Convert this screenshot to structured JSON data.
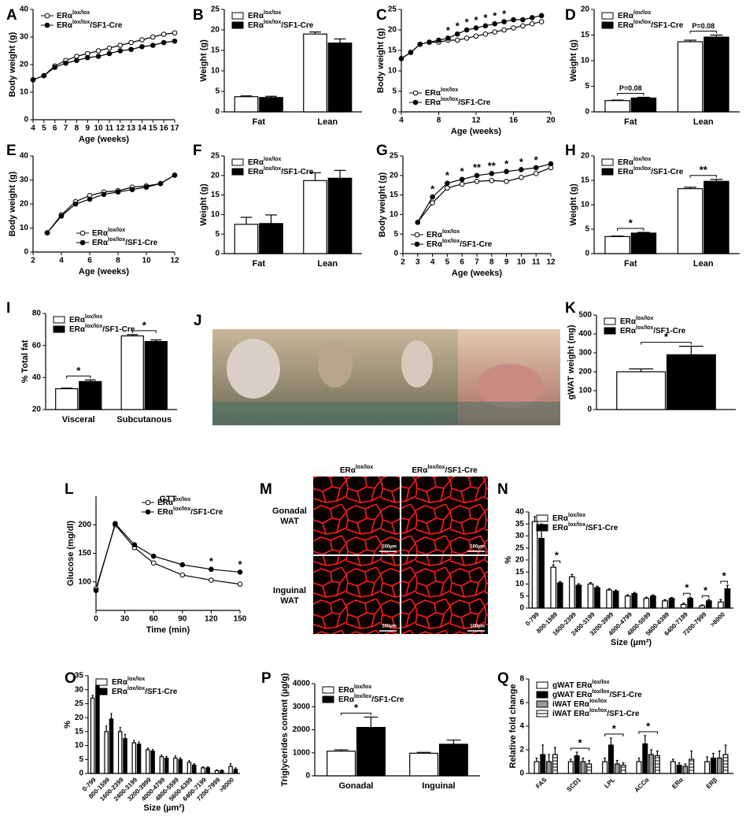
{
  "chart_data": [
    {
      "panel": "A",
      "type": "line",
      "x_label": "Age (weeks)",
      "y_label": "Body weight (g)",
      "x": [
        4,
        5,
        6,
        7,
        8,
        9,
        10,
        11,
        12,
        13,
        14,
        15,
        16,
        17
      ],
      "xlim": [
        4,
        17
      ],
      "xticks": [
        4,
        5,
        6,
        7,
        8,
        9,
        10,
        11,
        12,
        13,
        14,
        15,
        16,
        17
      ],
      "ylim": [
        0,
        40
      ],
      "yticks": [
        0,
        10,
        20,
        30,
        40
      ],
      "legend": "top-left",
      "series": [
        {
          "name": "ERαlox/lox",
          "color": "#000000",
          "fill": "#ffffff",
          "values": [
            14.5,
            16,
            19.5,
            21.5,
            23,
            24,
            25,
            26,
            27,
            28,
            29,
            30,
            31,
            31.5
          ]
        },
        {
          "name": "ERαlox/lox/SF1-Cre",
          "color": "#000000",
          "fill": "#000000",
          "values": [
            14.5,
            16,
            19,
            20.5,
            21.5,
            22.5,
            23,
            24,
            25,
            25.5,
            26.5,
            27,
            28,
            28.5
          ]
        }
      ]
    },
    {
      "panel": "B",
      "type": "bar",
      "y_label": "Weight (g)",
      "categories": [
        "Fat",
        "Lean"
      ],
      "ylim": [
        0,
        25
      ],
      "yticks": [
        0,
        5,
        10,
        15,
        20,
        25
      ],
      "legend": "top-left",
      "series": [
        {
          "name": "ERαlox/lox",
          "color": "#ffffff",
          "values": [
            3.7,
            19
          ],
          "errors": [
            0.2,
            0.5
          ]
        },
        {
          "name": "ERαlox/lox/SF1-Cre",
          "color": "#000000",
          "values": [
            3.5,
            16.8
          ],
          "errors": [
            0.3,
            1
          ]
        }
      ]
    },
    {
      "panel": "C",
      "type": "line",
      "x_label": "Age (weeks)",
      "y_label": "Body weight (g)",
      "x": [
        4,
        5,
        6,
        7,
        8,
        9,
        10,
        11,
        12,
        13,
        14,
        15,
        16,
        17,
        18,
        19
      ],
      "xlim": [
        4,
        20
      ],
      "xticks": [
        4,
        8,
        12,
        16,
        20
      ],
      "ylim": [
        0,
        25
      ],
      "yticks": [
        0,
        5,
        10,
        15,
        20,
        25
      ],
      "legend": "bottom-left",
      "significance": [
        null,
        null,
        null,
        null,
        null,
        "*",
        "*",
        "*",
        "*",
        "*",
        "*",
        "*",
        null,
        null,
        null,
        null
      ],
      "series": [
        {
          "name": "ERαlox/lox",
          "color": "#000000",
          "fill": "#ffffff",
          "values": [
            13,
            14.5,
            16.5,
            17,
            17,
            17.5,
            17.5,
            18,
            18.5,
            19,
            19.5,
            20,
            20.5,
            21,
            21.5,
            22
          ]
        },
        {
          "name": "ERαlox/lox/SF1-Cre",
          "color": "#000000",
          "fill": "#000000",
          "values": [
            13,
            14.5,
            16.5,
            17,
            17.5,
            18,
            19,
            20,
            20.5,
            21,
            21.5,
            22,
            22.5,
            22.5,
            23,
            23.5
          ]
        }
      ]
    },
    {
      "panel": "D",
      "type": "bar",
      "y_label": "Weight (g)",
      "categories": [
        "Fat",
        "Lean"
      ],
      "ylim": [
        0,
        20
      ],
      "yticks": [
        0,
        5,
        10,
        15,
        20
      ],
      "legend": "top-left",
      "significance": [
        "P=0.08",
        "P=0.08"
      ],
      "series": [
        {
          "name": "ERαlox/lox",
          "color": "#ffffff",
          "values": [
            2.2,
            13.7
          ],
          "errors": [
            0.1,
            0.3
          ]
        },
        {
          "name": "ERαlox/lox/SF1-Cre",
          "color": "#000000",
          "values": [
            2.7,
            14.6
          ],
          "errors": [
            0.15,
            0.4
          ]
        }
      ]
    },
    {
      "panel": "E",
      "type": "line",
      "x_label": "Age (weeks)",
      "y_label": "Body weight (g)",
      "x": [
        3,
        4,
        5,
        6,
        7,
        8,
        9,
        10,
        11,
        12
      ],
      "xlim": [
        2,
        12
      ],
      "xticks": [
        2,
        4,
        6,
        8,
        10,
        12
      ],
      "ylim": [
        0,
        40
      ],
      "yticks": [
        0,
        10,
        20,
        30,
        40
      ],
      "legend": "bottom-right",
      "series": [
        {
          "name": "ERαlox/lox",
          "color": "#000000",
          "fill": "#ffffff",
          "values": [
            8,
            15.5,
            21,
            23.5,
            25,
            25.5,
            27,
            27.5,
            28.5,
            32
          ]
        },
        {
          "name": "ERαlox/lox/SF1-Cre",
          "color": "#000000",
          "fill": "#000000",
          "values": [
            8,
            15,
            20,
            22,
            24,
            25,
            26,
            27,
            28.5,
            32
          ]
        }
      ]
    },
    {
      "panel": "F",
      "type": "bar",
      "y_label": "Weight (g)",
      "categories": [
        "Fat",
        "Lean"
      ],
      "ylim": [
        0,
        25
      ],
      "yticks": [
        0,
        5,
        10,
        15,
        20,
        25
      ],
      "legend": "top-left",
      "series": [
        {
          "name": "ERαlox/lox",
          "color": "#ffffff",
          "values": [
            7.5,
            18.7
          ],
          "errors": [
            1.8,
            2
          ]
        },
        {
          "name": "ERαlox/lox/SF1-Cre",
          "color": "#000000",
          "values": [
            7.7,
            19.3
          ],
          "errors": [
            2.2,
            2
          ]
        }
      ]
    },
    {
      "panel": "G",
      "type": "line",
      "x_label": "Age (weeks)",
      "y_label": "Body weight (g)",
      "x": [
        3,
        4,
        5,
        6,
        7,
        8,
        9,
        10,
        11,
        12
      ],
      "xlim": [
        2,
        12
      ],
      "xticks": [
        2,
        3,
        4,
        5,
        6,
        7,
        8,
        9,
        10,
        11,
        12
      ],
      "ylim": [
        0,
        25
      ],
      "yticks": [
        0,
        5,
        10,
        15,
        20,
        25
      ],
      "legend": "bottom-left",
      "significance": [
        null,
        "*",
        "*",
        "*",
        "**",
        "**",
        "*",
        "*",
        "*",
        null
      ],
      "series": [
        {
          "name": "ERαlox/lox",
          "color": "#000000",
          "fill": "#ffffff",
          "values": [
            8,
            13,
            16.8,
            17.8,
            18.5,
            18.7,
            18.5,
            19.5,
            20.5,
            22
          ]
        },
        {
          "name": "ERαlox/lox/SF1-Cre",
          "color": "#000000",
          "fill": "#000000",
          "values": [
            8,
            14.5,
            18,
            19,
            20,
            20.5,
            21,
            21.5,
            22,
            23
          ]
        }
      ]
    },
    {
      "panel": "H",
      "type": "bar",
      "y_label": "Weight (g)",
      "categories": [
        "Fat",
        "Lean"
      ],
      "ylim": [
        0,
        20
      ],
      "yticks": [
        0,
        5,
        10,
        15,
        20
      ],
      "legend": "top-left",
      "significance": [
        "*",
        "**"
      ],
      "series": [
        {
          "name": "ERαlox/lox",
          "color": "#ffffff",
          "values": [
            3.5,
            13.3
          ],
          "errors": [
            0.1,
            0.3
          ]
        },
        {
          "name": "ERαlox/lox/SF1-Cre",
          "color": "#000000",
          "values": [
            4.2,
            14.8
          ],
          "errors": [
            0.15,
            0.4
          ]
        }
      ]
    },
    {
      "panel": "I",
      "type": "bar",
      "y_label": "% Total fat",
      "categories": [
        "Visceral",
        "Subcutanous"
      ],
      "ylim": [
        20,
        80
      ],
      "yticks": [
        20,
        40,
        60,
        80
      ],
      "legend": "top-left",
      "significance": [
        "*",
        "*"
      ],
      "series": [
        {
          "name": "ERαlox/lox",
          "color": "#ffffff",
          "values": [
            33,
            66
          ],
          "errors": [
            0.4,
            0.8
          ]
        },
        {
          "name": "ERαlox/lox/SF1-Cre",
          "color": "#000000",
          "values": [
            37.5,
            62.5
          ],
          "errors": [
            1,
            1
          ]
        }
      ]
    },
    {
      "panel": "K",
      "type": "bar",
      "y_label": "gWAT weight (mg)",
      "categories": [
        null
      ],
      "ylim": [
        0,
        500
      ],
      "yticks": [
        0,
        100,
        200,
        300,
        400,
        500
      ],
      "legend": "top-left",
      "significance": [
        "*"
      ],
      "series": [
        {
          "name": "ERαlox/lox",
          "color": "#ffffff",
          "values": [
            200
          ],
          "errors": [
            15
          ]
        },
        {
          "name": "ERαlox/lox/SF1-Cre",
          "color": "#000000",
          "values": [
            290
          ],
          "errors": [
            45
          ]
        }
      ]
    },
    {
      "panel": "L",
      "type": "line",
      "title": "GTT",
      "x_label": "Time (min)",
      "y_label": "Glucose (mg/dl)",
      "x": [
        0,
        20,
        40,
        60,
        90,
        120,
        150
      ],
      "xlim": [
        0,
        150
      ],
      "xticks": [
        0,
        30,
        60,
        90,
        120,
        150
      ],
      "ylim": [
        50,
        250
      ],
      "yticks": [
        100,
        150,
        200
      ],
      "legend": "top-right",
      "significance": [
        null,
        null,
        null,
        null,
        null,
        "*",
        "*"
      ],
      "series": [
        {
          "name": "ERαlox/lox",
          "color": "#000000",
          "fill": "#ffffff",
          "values": [
            88,
            200,
            160,
            133,
            112,
            103,
            96
          ]
        },
        {
          "name": "ERαlox/lox/SF1-Cre",
          "color": "#000000",
          "fill": "#000000",
          "values": [
            85,
            202,
            165,
            145,
            130,
            122,
            117
          ]
        }
      ]
    },
    {
      "panel": "N",
      "type": "bar",
      "x_label": "Size (µm²)",
      "y_label": "%",
      "xtick_rotation": -45,
      "categories": [
        "0-799",
        "800-1599",
        "1600-2399",
        "2400-3199",
        "3200-3999",
        "4000-4799",
        "4800-5599",
        "5600-6399",
        "6400-7199",
        "7200-7999",
        ">8000"
      ],
      "ylim": [
        0,
        40
      ],
      "yticks": [
        0,
        5,
        10,
        15,
        20,
        25,
        30,
        35,
        40
      ],
      "legend": "top-left",
      "significance": [
        null,
        "*",
        null,
        null,
        null,
        null,
        null,
        null,
        "*",
        "*",
        "*"
      ],
      "series": [
        {
          "name": "ERαlox/lox",
          "color": "#ffffff",
          "values": [
            36,
            17,
            13,
            10,
            7.5,
            5,
            4,
            3,
            1.5,
            1,
            2.5
          ],
          "errors": [
            2,
            1,
            1,
            0.6,
            0.5,
            0.5,
            0.5,
            0.5,
            0.5,
            0.3,
            1
          ]
        },
        {
          "name": "ERαlox/lox/SF1-Cre",
          "color": "#000000",
          "values": [
            29,
            10.5,
            9.5,
            8.5,
            7,
            6,
            5,
            4,
            4,
            3,
            8
          ],
          "errors": [
            6,
            0.5,
            0.6,
            0.6,
            0.5,
            0.5,
            0.5,
            0.4,
            0.5,
            0.5,
            1.5
          ]
        }
      ]
    },
    {
      "panel": "O",
      "type": "bar",
      "x_label": "Size (µm²)",
      "y_label": "%",
      "xtick_rotation": -45,
      "categories": [
        "0-799",
        "800-1599",
        "1600-2399",
        "2400-3199",
        "3200-3999",
        "4000-4799",
        "4800-5599",
        "5600-6399",
        "6400-7199",
        "7200-7999",
        ">8000"
      ],
      "ylim": [
        0,
        35
      ],
      "yticks": [
        0,
        5,
        10,
        15,
        20,
        25,
        30,
        35
      ],
      "legend": "top-left",
      "series": [
        {
          "name": "ERαlox/lox",
          "color": "#ffffff",
          "values": [
            27,
            15,
            15,
            11,
            8.5,
            6,
            5.5,
            4,
            2,
            1,
            2.5
          ],
          "errors": [
            1,
            2,
            1.5,
            0.8,
            0.6,
            0.6,
            0.8,
            0.6,
            0.4,
            0.3,
            1
          ]
        },
        {
          "name": "ERαlox/lox/SF1-Cre",
          "color": "#000000",
          "values": [
            31.5,
            19.5,
            12.5,
            10.5,
            8,
            5.5,
            5,
            3,
            2,
            1,
            1.5
          ],
          "errors": [
            2,
            2,
            1.5,
            0.8,
            0.6,
            0.6,
            0.6,
            0.5,
            0.4,
            0.3,
            0.5
          ]
        }
      ]
    },
    {
      "panel": "P",
      "type": "bar",
      "y_label": "Triglycerides content (µg/g)",
      "categories": [
        "Gonadal",
        "Inguinal"
      ],
      "ylim": [
        0,
        4000
      ],
      "yticks": [
        0,
        1000,
        2000,
        3000,
        4000
      ],
      "legend": "top-left",
      "significance": [
        "*",
        null
      ],
      "series": [
        {
          "name": "ERαlox/lox",
          "color": "#ffffff",
          "values": [
            1070,
            980
          ],
          "errors": [
            60,
            40
          ]
        },
        {
          "name": "ERαlox/lox/SF1-Cre",
          "color": "#000000",
          "values": [
            2100,
            1370
          ],
          "errors": [
            450,
            180
          ]
        }
      ]
    },
    {
      "panel": "Q",
      "type": "bar",
      "y_label": "Relative fold change",
      "xtick_rotation": -45,
      "categories": [
        "FAS",
        "SCD1",
        "LPL",
        "ACCα",
        "ERα",
        "ERβ"
      ],
      "ylim": [
        0,
        8
      ],
      "yticks": [
        0,
        2,
        4,
        6,
        8
      ],
      "legend": "top-left",
      "significance": [
        null,
        "*",
        "*",
        "*",
        null,
        null
      ],
      "series": [
        {
          "name": "gWAT ERαlox/lox",
          "color": "#ffffff",
          "values": [
            1,
            1,
            1,
            1,
            1,
            1
          ],
          "errors": [
            0.3,
            0.2,
            0.3,
            0.3,
            0.2,
            0.4
          ]
        },
        {
          "name": "gWAT ERαlox/lox/SF1-Cre",
          "color": "#000000",
          "values": [
            1.6,
            1.5,
            2.4,
            2.5,
            0.7,
            1.3
          ],
          "errors": [
            0.8,
            0.3,
            0.6,
            0.7,
            0.2,
            0.4
          ]
        },
        {
          "name": "iWAT ERαlox/lox",
          "color": "#999999",
          "values": [
            1,
            1,
            0.8,
            1.6,
            0.6,
            1.3
          ],
          "errors": [
            0.6,
            0.3,
            0.3,
            0.4,
            0.2,
            0.6
          ]
        },
        {
          "name": "iWAT ERαlox/lox/SF1-Cre",
          "color": "#dddddd",
          "pattern": "hatch",
          "values": [
            1.6,
            0.8,
            0.7,
            1.5,
            1.2,
            1.6
          ],
          "errors": [
            0.6,
            0.3,
            0.2,
            0.4,
            0.7,
            0.8
          ]
        }
      ]
    }
  ],
  "image_panels": [
    {
      "panel": "J"
    },
    {
      "panel": "M",
      "column_labels": [
        "ERαlox/lox",
        "ERαlox/lox/SF1-Cre"
      ],
      "row_labels": [
        "Gonadal WAT",
        "Inguinal WAT"
      ],
      "scale_bar": "100µm"
    }
  ]
}
